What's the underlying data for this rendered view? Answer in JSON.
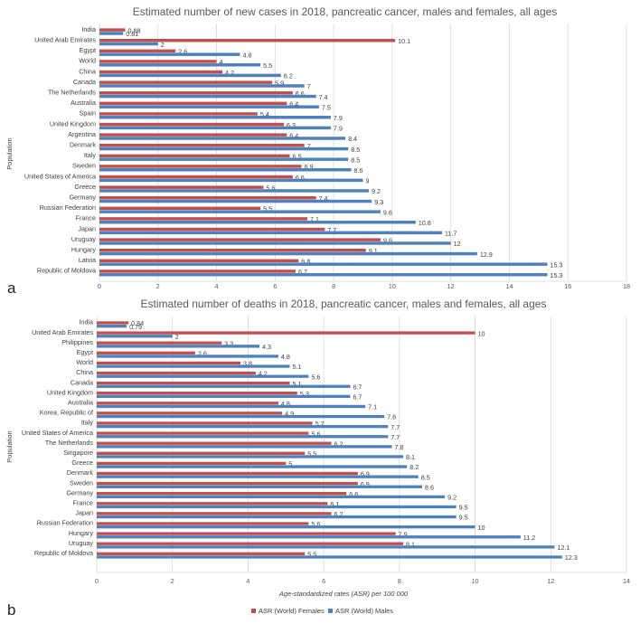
{
  "colors": {
    "females": "#c0504d",
    "males": "#4f81bd",
    "grid": "#d9d9d9"
  },
  "legend": {
    "females": "ASR (World) Females",
    "males": "ASR (World) Males"
  },
  "chart_data": [
    {
      "type": "bar",
      "panel_label": "a",
      "title": "Estimated number of new cases in 2018, pancreatic cancer, males and females, all ages",
      "ylabel": "Population",
      "xlabel": "",
      "xlim": [
        0,
        18
      ],
      "xticks": [
        0,
        2,
        4,
        6,
        8,
        10,
        12,
        14,
        16,
        18
      ],
      "grid": true,
      "categories": [
        "India",
        "United Arab Emirates",
        "Egypt",
        "World",
        "China",
        "Canada",
        "The Netherlands",
        "Australia",
        "Spain",
        "United Kingdom",
        "Argentina",
        "Denmark",
        "Italy",
        "Sweden",
        "United States of America",
        "Greece",
        "Germany",
        "Russian Federation",
        "France",
        "Japan",
        "Uruguay",
        "Hungary",
        "Latvia",
        "Republic of Moldova"
      ],
      "series": [
        {
          "name": "ASR (World) Females",
          "values": [
            0.88,
            10.1,
            2.6,
            4,
            4.2,
            5.9,
            6.6,
            6.4,
            5.4,
            6.3,
            6.4,
            7,
            6.5,
            6.9,
            6.6,
            5.6,
            7.4,
            5.5,
            7.1,
            7.7,
            9.6,
            9.1,
            6.8,
            6.7
          ],
          "labels": [
            "0.88",
            "10.1",
            "2.6",
            "4",
            "4.2",
            "5.9",
            "6.6",
            "6.4",
            "5.4",
            "6.3",
            "6.4",
            "7",
            "6.5",
            "6.9",
            "6.6",
            "5.6",
            "7.4",
            "5.5",
            "7.1",
            "7.7",
            "9.6",
            "9.1",
            "6.8",
            "6.7"
          ]
        },
        {
          "name": "ASR (World) Males",
          "values": [
            0.81,
            2,
            4.8,
            5.5,
            6.2,
            7,
            7.4,
            7.5,
            7.9,
            7.9,
            8.4,
            8.5,
            8.5,
            8.6,
            9,
            9.2,
            9.3,
            9.6,
            10.8,
            11.7,
            12,
            12.9,
            15.3,
            15.3
          ],
          "labels": [
            "0.81",
            "2",
            "4.8",
            "5.5",
            "6.2",
            "7",
            "7.4",
            "7.5",
            "7.9",
            "7.9",
            "8.4",
            "8.5",
            "8.5",
            "8.6",
            "9",
            "9.2",
            "9.3",
            "9.6",
            "10.8",
            "11.7",
            "12",
            "12.9",
            "15.3",
            "15.3"
          ]
        }
      ]
    },
    {
      "type": "bar",
      "panel_label": "b",
      "title": "Estimated number of deaths in 2018, pancreatic cancer, males and females, all ages",
      "ylabel": "Population",
      "xlabel": "Age-standardized rates (ASR) per 100 000",
      "xlim": [
        0,
        14
      ],
      "xticks": [
        0,
        2,
        4,
        6,
        8,
        10,
        12,
        14
      ],
      "grid": true,
      "categories": [
        "India",
        "United Arab Emirates",
        "Philippines",
        "Egypt",
        "World",
        "China",
        "Canada",
        "United Kingdom",
        "Australia",
        "Korea, Republic of",
        "Italy",
        "United States of America",
        "The Netherlands",
        "Singapore",
        "Greece",
        "Denmark",
        "Sweden",
        "Germany",
        "France",
        "Japan",
        "Russian Federation",
        "Hungary",
        "Uruguay",
        "Republic of Moldova"
      ],
      "series": [
        {
          "name": "ASR (World) Females",
          "values": [
            0.84,
            10,
            3.3,
            2.6,
            3.8,
            4.2,
            5.1,
            5.3,
            4.8,
            4.9,
            5.7,
            5.6,
            6.2,
            5.5,
            5,
            6.9,
            6.9,
            6.6,
            6.1,
            6.2,
            5.6,
            7.9,
            8.1,
            5.5
          ],
          "labels": [
            "0.84",
            "10",
            "3.3",
            "2.6",
            "3.8",
            "4.2",
            "5.1",
            "5.3",
            "4.8",
            "4.9",
            "5.7",
            "5.6",
            "6.2",
            "5.5",
            "5",
            "6.9",
            "6.9",
            "6.6",
            "6.1",
            "6.2",
            "5.6",
            "7.9",
            "8.1",
            "5.5"
          ]
        },
        {
          "name": "ASR (World) Males",
          "values": [
            0.79,
            2,
            4.3,
            4.8,
            5.1,
            5.6,
            6.7,
            6.7,
            7.1,
            7.6,
            7.7,
            7.7,
            7.8,
            8.1,
            8.2,
            8.5,
            8.6,
            9.2,
            9.5,
            9.5,
            10,
            11.2,
            12.1,
            12.3
          ],
          "labels": [
            "0.79",
            "2",
            "4.3",
            "4.8",
            "5.1",
            "5.6",
            "6.7",
            "6.7",
            "7.1",
            "7.6",
            "7.7",
            "7.7",
            "7.8",
            "8.1",
            "8.2",
            "8.5",
            "8.6",
            "9.2",
            "9.5",
            "9.5",
            "10",
            "11.2",
            "12.1",
            "12.3"
          ]
        }
      ]
    }
  ]
}
